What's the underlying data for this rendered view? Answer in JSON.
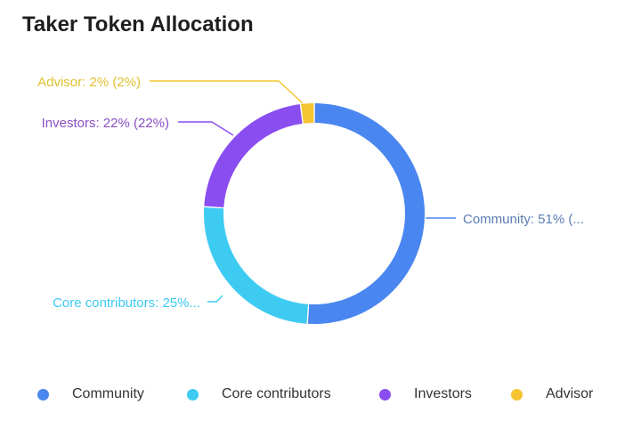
{
  "chart_data": {
    "type": "pie",
    "title": "Taker Token Allocation",
    "donut": true,
    "series": [
      {
        "name": "Community",
        "value": 51,
        "color": "#4a86f0",
        "label": "Community: 51% (..."
      },
      {
        "name": "Core contributors",
        "value": 25,
        "color": "#3ecbf2",
        "label": "Core contributors: 25%..."
      },
      {
        "name": "Investors",
        "value": 22,
        "color": "#8a4df0",
        "label": "Investors: 22% (22%)"
      },
      {
        "name": "Advisor",
        "value": 2,
        "color": "#f4c531",
        "label": "Advisor: 2% (2%)"
      }
    ],
    "legend_position": "bottom"
  },
  "colors": {
    "label_community": "#5b7db3",
    "label_core": "#3ecbf2",
    "label_investors": "#8a4fc4",
    "label_advisor": "#e0c030"
  }
}
